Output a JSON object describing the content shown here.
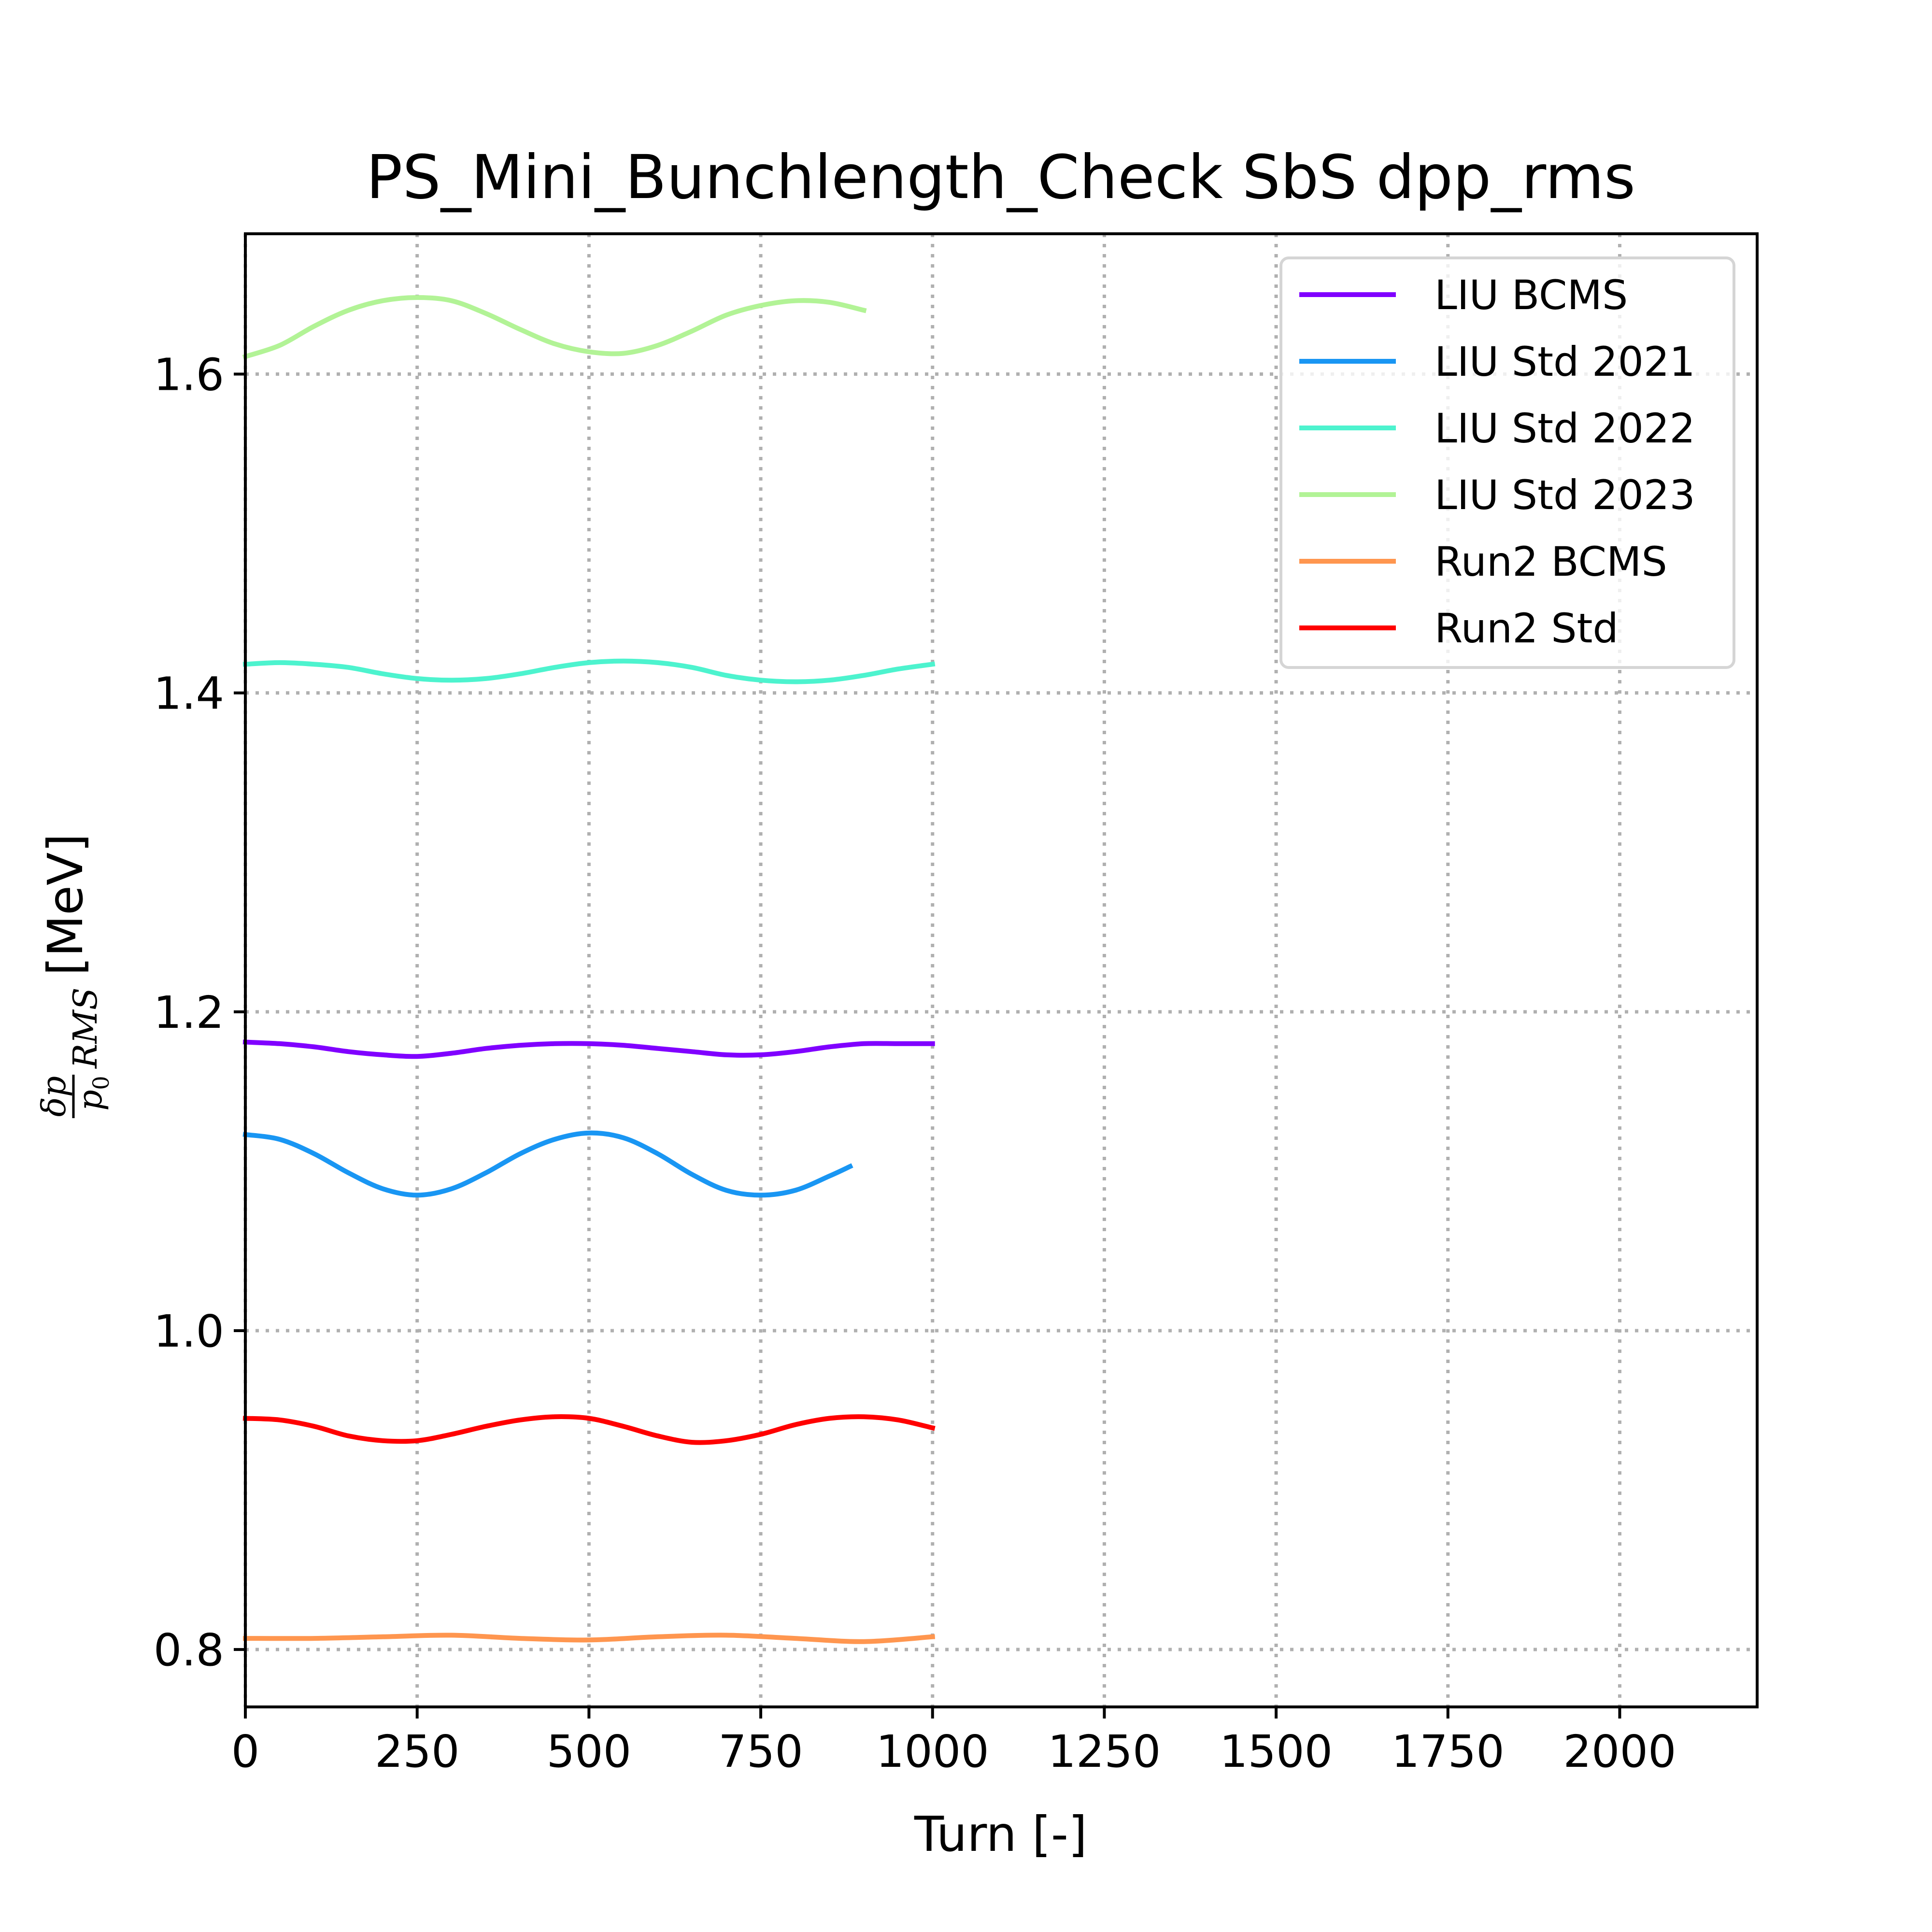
{
  "chart_data": {
    "type": "line",
    "title": "PS_Mini_Bunchlength_Check SbS dpp_rms",
    "xlabel": "Turn [-]",
    "ylabel": "[MeV]",
    "ylabel_math": {
      "num": "δp",
      "den": "p",
      "den_sub": "0",
      "sub": "RMS"
    },
    "xlim": [
      0,
      2200
    ],
    "ylim": [
      0.764,
      1.688
    ],
    "xticks": [
      0,
      250,
      500,
      750,
      1000,
      1250,
      1500,
      1750,
      2000
    ],
    "xtick_labels": [
      "0",
      "250",
      "500",
      "750",
      "1000",
      "1250",
      "1500",
      "1750",
      "2000"
    ],
    "yticks": [
      0.8,
      1.0,
      1.2,
      1.4,
      1.6
    ],
    "ytick_labels": [
      "0.8",
      "1.0",
      "1.2",
      "1.4",
      "1.6"
    ],
    "grid": true,
    "legend_position": "top-right",
    "series": [
      {
        "name": "LIU BCMS",
        "color": "#8000ff",
        "x": [
          0,
          50,
          100,
          150,
          200,
          250,
          300,
          350,
          400,
          450,
          500,
          550,
          600,
          650,
          700,
          750,
          800,
          850,
          900,
          950,
          1000
        ],
        "y": [
          1.181,
          1.18,
          1.178,
          1.175,
          1.173,
          1.172,
          1.174,
          1.177,
          1.179,
          1.18,
          1.18,
          1.179,
          1.177,
          1.175,
          1.173,
          1.173,
          1.175,
          1.178,
          1.18,
          1.18,
          1.18
        ]
      },
      {
        "name": "LIU Std 2021",
        "color": "#1996f3",
        "x": [
          0,
          50,
          100,
          150,
          200,
          250,
          300,
          350,
          400,
          450,
          500,
          550,
          600,
          650,
          700,
          750,
          800,
          850,
          880
        ],
        "y": [
          1.123,
          1.12,
          1.111,
          1.099,
          1.089,
          1.085,
          1.089,
          1.099,
          1.111,
          1.12,
          1.124,
          1.121,
          1.111,
          1.098,
          1.088,
          1.085,
          1.088,
          1.097,
          1.103
        ]
      },
      {
        "name": "LIU Std 2022",
        "color": "#4df3ce",
        "x": [
          0,
          50,
          100,
          150,
          200,
          250,
          300,
          350,
          400,
          450,
          500,
          550,
          600,
          650,
          700,
          750,
          800,
          850,
          900,
          950,
          1000
        ],
        "y": [
          1.418,
          1.419,
          1.418,
          1.416,
          1.412,
          1.409,
          1.408,
          1.409,
          1.412,
          1.416,
          1.419,
          1.42,
          1.419,
          1.416,
          1.411,
          1.408,
          1.407,
          1.408,
          1.411,
          1.415,
          1.418
        ]
      },
      {
        "name": "LIU Std 2023",
        "color": "#b2f396",
        "x": [
          0,
          50,
          100,
          150,
          200,
          250,
          300,
          350,
          400,
          450,
          500,
          550,
          600,
          650,
          700,
          750,
          800,
          850,
          900
        ],
        "y": [
          1.611,
          1.618,
          1.63,
          1.64,
          1.646,
          1.648,
          1.646,
          1.638,
          1.628,
          1.619,
          1.614,
          1.613,
          1.618,
          1.627,
          1.637,
          1.643,
          1.646,
          1.645,
          1.64
        ]
      },
      {
        "name": "Run2 BCMS",
        "color": "#ff964f",
        "x": [
          0,
          100,
          200,
          300,
          400,
          500,
          600,
          700,
          800,
          900,
          1000
        ],
        "y": [
          0.807,
          0.807,
          0.808,
          0.809,
          0.807,
          0.806,
          0.808,
          0.809,
          0.807,
          0.805,
          0.808
        ]
      },
      {
        "name": "Run2 Std",
        "color": "#ff0000",
        "x": [
          0,
          50,
          100,
          150,
          200,
          250,
          300,
          350,
          400,
          450,
          500,
          550,
          600,
          650,
          700,
          750,
          800,
          850,
          900,
          950,
          1000
        ],
        "y": [
          0.945,
          0.944,
          0.94,
          0.934,
          0.931,
          0.931,
          0.935,
          0.94,
          0.944,
          0.946,
          0.945,
          0.94,
          0.934,
          0.93,
          0.931,
          0.935,
          0.941,
          0.945,
          0.946,
          0.944,
          0.939
        ]
      }
    ]
  }
}
